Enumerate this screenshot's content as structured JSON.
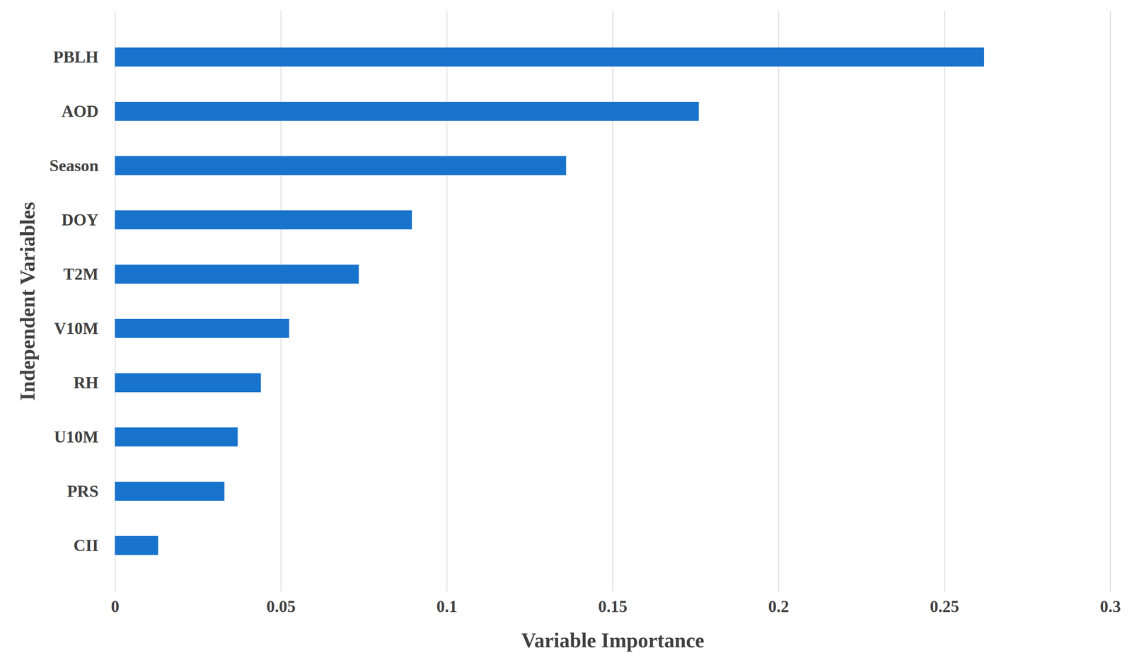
{
  "chart_data": {
    "type": "bar",
    "orientation": "horizontal",
    "xlabel": "Variable Importance",
    "ylabel": "Independent Variables",
    "categories": [
      "PBLH",
      "AOD",
      "Season",
      "DOY",
      "T2M",
      "V10M",
      "RH",
      "U10M",
      "PRS",
      "CII"
    ],
    "values": [
      0.262,
      0.176,
      0.136,
      0.0895,
      0.0735,
      0.0525,
      0.044,
      0.037,
      0.033,
      0.013
    ],
    "color": "#1873cc",
    "xlim": [
      0,
      0.3
    ],
    "xticks": [
      0,
      0.05,
      0.1,
      0.15,
      0.2,
      0.25,
      0.3
    ],
    "grid": true
  }
}
